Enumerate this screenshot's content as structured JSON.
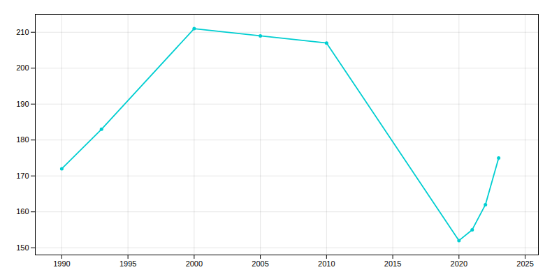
{
  "chart_data": {
    "type": "line",
    "x": [
      1990,
      1993,
      2000,
      2005,
      2010,
      2020,
      2021,
      2022,
      2023
    ],
    "values": [
      172,
      183,
      211,
      209,
      207,
      152,
      155,
      162,
      175
    ],
    "color": "#00CED1",
    "marker": "circle",
    "xlim": [
      1988,
      2026
    ],
    "ylim": [
      148,
      215
    ],
    "xticks": [
      1990,
      1995,
      2000,
      2005,
      2010,
      2015,
      2020,
      2025
    ],
    "yticks": [
      150,
      160,
      170,
      180,
      190,
      200,
      210
    ],
    "grid": true
  }
}
